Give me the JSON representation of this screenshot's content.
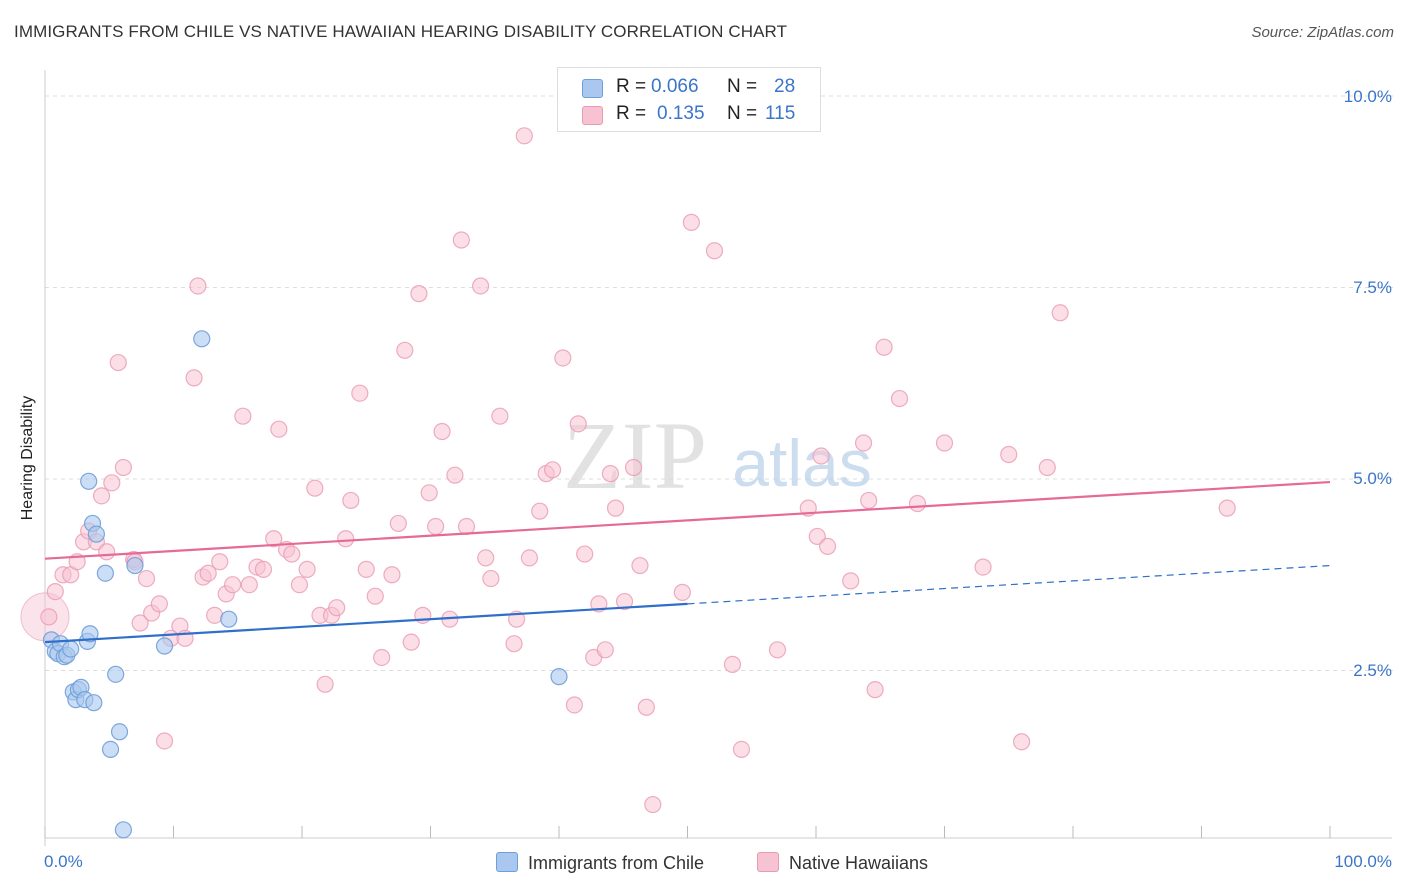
{
  "header": {
    "title": "IMMIGRANTS FROM CHILE VS NATIVE HAWAIIAN HEARING DISABILITY CORRELATION CHART",
    "source": "Source: ZipAtlas.com"
  },
  "watermark": {
    "zip": "ZIP",
    "atlas": "atlas"
  },
  "stats": {
    "rows": [
      {
        "r_label": "R =",
        "r_value": "0.066",
        "n_label": "N =",
        "n_value": "28"
      },
      {
        "r_label": "R =",
        "r_value": "0.135",
        "n_label": "N =",
        "n_value": "115"
      }
    ]
  },
  "legend": {
    "series1": "Immigrants from Chile",
    "series2": "Native Hawaiians"
  },
  "colors": {
    "blue_fill": "#aac8ef",
    "blue_stroke": "#6f9fd8",
    "blue_line": "#2f6fc9",
    "pink_fill": "#f7c2d2",
    "pink_stroke": "#e89ab4",
    "pink_line": "#e56a97",
    "axis_text": "#3b75c9",
    "grid": "#dddddd"
  },
  "chart_data": {
    "type": "scatter",
    "title": "IMMIGRANTS FROM CHILE VS NATIVE HAWAIIAN HEARING DISABILITY CORRELATION CHART",
    "xlabel": "",
    "ylabel": "Hearing Disability",
    "x_tick_labels": [
      "0.0%",
      "100.0%"
    ],
    "y_tick_labels": [
      "2.5%",
      "5.0%",
      "7.5%",
      "10.0%"
    ],
    "xlim": [
      0,
      100
    ],
    "ylim": [
      0,
      10
    ],
    "grid": true,
    "legend_position": "bottom-center",
    "series": [
      {
        "name": "Immigrants from Chile",
        "R": 0.066,
        "N": 28,
        "trend": {
          "x": [
            0,
            50
          ],
          "y": [
            2.87,
            3.37
          ]
        },
        "trend_extension": {
          "x": [
            50,
            100
          ],
          "y": [
            3.37,
            3.87
          ]
        },
        "points": [
          [
            0.5,
            2.9
          ],
          [
            0.8,
            2.75
          ],
          [
            1.0,
            2.72
          ],
          [
            1.2,
            2.85
          ],
          [
            1.5,
            2.68
          ],
          [
            1.7,
            2.7
          ],
          [
            2.0,
            2.78
          ],
          [
            2.2,
            2.22
          ],
          [
            2.4,
            2.12
          ],
          [
            2.6,
            2.25
          ],
          [
            2.8,
            2.28
          ],
          [
            3.1,
            2.12
          ],
          [
            3.3,
            2.88
          ],
          [
            3.5,
            2.98
          ],
          [
            3.8,
            2.08
          ],
          [
            3.4,
            4.97
          ],
          [
            3.7,
            4.42
          ],
          [
            4.0,
            4.28
          ],
          [
            4.7,
            3.77
          ],
          [
            5.5,
            2.45
          ],
          [
            5.8,
            1.7
          ],
          [
            6.1,
            0.42
          ],
          [
            5.1,
            1.47
          ],
          [
            7.0,
            3.87
          ],
          [
            9.3,
            2.82
          ],
          [
            12.2,
            6.83
          ],
          [
            14.3,
            3.17
          ],
          [
            40.0,
            2.42
          ]
        ]
      },
      {
        "name": "Native Hawaiians",
        "R": 0.135,
        "N": 115,
        "trend": {
          "x": [
            0,
            100
          ],
          "y": [
            3.96,
            4.96
          ]
        },
        "points": [
          [
            0.3,
            3.2
          ],
          [
            0.8,
            3.53
          ],
          [
            1.4,
            3.75
          ],
          [
            2.0,
            3.75
          ],
          [
            2.5,
            3.92
          ],
          [
            3.0,
            4.18
          ],
          [
            3.4,
            4.32
          ],
          [
            4.0,
            4.18
          ],
          [
            4.4,
            4.78
          ],
          [
            4.8,
            4.05
          ],
          [
            5.2,
            4.95
          ],
          [
            5.7,
            6.52
          ],
          [
            6.1,
            5.15
          ],
          [
            6.9,
            3.95
          ],
          [
            7.0,
            3.92
          ],
          [
            7.4,
            3.12
          ],
          [
            7.9,
            3.7
          ],
          [
            8.3,
            3.25
          ],
          [
            8.9,
            3.37
          ],
          [
            9.3,
            1.58
          ],
          [
            9.8,
            2.92
          ],
          [
            10.5,
            3.08
          ],
          [
            10.9,
            2.92
          ],
          [
            11.6,
            6.32
          ],
          [
            11.9,
            7.52
          ],
          [
            12.3,
            3.72
          ],
          [
            12.7,
            3.77
          ],
          [
            13.2,
            3.22
          ],
          [
            13.6,
            3.92
          ],
          [
            14.1,
            3.5
          ],
          [
            14.6,
            3.62
          ],
          [
            15.4,
            5.82
          ],
          [
            15.9,
            3.62
          ],
          [
            16.5,
            3.85
          ],
          [
            17.0,
            3.82
          ],
          [
            17.8,
            4.22
          ],
          [
            18.2,
            5.65
          ],
          [
            18.8,
            4.08
          ],
          [
            19.2,
            4.02
          ],
          [
            19.8,
            3.62
          ],
          [
            20.4,
            3.82
          ],
          [
            21.0,
            4.88
          ],
          [
            21.4,
            3.22
          ],
          [
            21.8,
            2.32
          ],
          [
            22.3,
            3.22
          ],
          [
            22.7,
            3.32
          ],
          [
            23.4,
            4.22
          ],
          [
            23.8,
            4.72
          ],
          [
            24.5,
            6.12
          ],
          [
            25.0,
            3.82
          ],
          [
            25.7,
            3.47
          ],
          [
            26.2,
            2.67
          ],
          [
            27.0,
            3.75
          ],
          [
            27.5,
            4.42
          ],
          [
            28.0,
            6.68
          ],
          [
            28.5,
            2.87
          ],
          [
            29.1,
            7.42
          ],
          [
            29.4,
            3.22
          ],
          [
            29.9,
            4.82
          ],
          [
            30.4,
            4.38
          ],
          [
            30.9,
            5.62
          ],
          [
            31.5,
            3.17
          ],
          [
            31.9,
            5.05
          ],
          [
            32.4,
            8.12
          ],
          [
            32.8,
            4.38
          ],
          [
            33.9,
            7.52
          ],
          [
            34.7,
            3.7
          ],
          [
            34.3,
            3.97
          ],
          [
            35.4,
            5.82
          ],
          [
            36.5,
            2.85
          ],
          [
            36.7,
            3.17
          ],
          [
            37.3,
            9.48
          ],
          [
            37.7,
            3.97
          ],
          [
            38.5,
            4.58
          ],
          [
            39.0,
            5.07
          ],
          [
            39.5,
            5.12
          ],
          [
            40.3,
            6.58
          ],
          [
            41.2,
            2.05
          ],
          [
            41.5,
            5.72
          ],
          [
            42.0,
            4.02
          ],
          [
            42.7,
            2.67
          ],
          [
            43.1,
            3.37
          ],
          [
            43.6,
            2.77
          ],
          [
            44.0,
            5.07
          ],
          [
            44.4,
            4.62
          ],
          [
            45.1,
            3.4
          ],
          [
            45.8,
            5.15
          ],
          [
            46.3,
            3.87
          ],
          [
            46.8,
            2.02
          ],
          [
            47.3,
            0.75
          ],
          [
            49.6,
            3.52
          ],
          [
            50.3,
            8.35
          ],
          [
            52.1,
            7.98
          ],
          [
            53.5,
            2.58
          ],
          [
            54.2,
            1.47
          ],
          [
            57.0,
            2.77
          ],
          [
            59.4,
            4.62
          ],
          [
            60.1,
            4.25
          ],
          [
            60.4,
            5.3
          ],
          [
            60.9,
            4.12
          ],
          [
            62.7,
            3.67
          ],
          [
            63.7,
            5.47
          ],
          [
            64.1,
            4.72
          ],
          [
            64.6,
            2.25
          ],
          [
            65.3,
            6.72
          ],
          [
            66.5,
            6.05
          ],
          [
            67.9,
            4.68
          ],
          [
            70.0,
            5.47
          ],
          [
            73.0,
            3.85
          ],
          [
            75.0,
            5.32
          ],
          [
            76.0,
            1.57
          ],
          [
            78.0,
            5.15
          ],
          [
            79.0,
            7.17
          ],
          [
            92.0,
            4.62
          ]
        ]
      }
    ]
  }
}
